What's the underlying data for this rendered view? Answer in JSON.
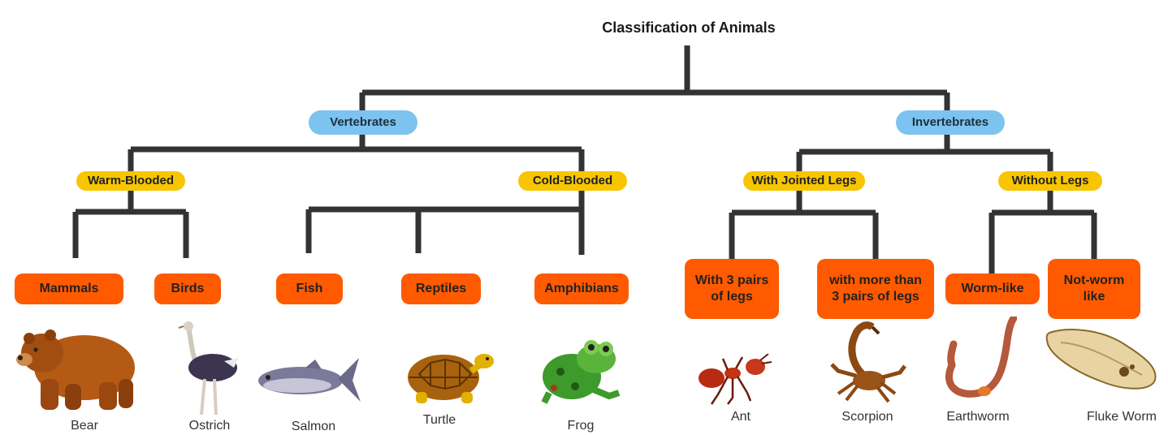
{
  "title": "Classification of Animals",
  "colors": {
    "line": "#333333",
    "level1": "#7cc3f0",
    "level2": "#f7c600",
    "level3": "#ff5a00"
  },
  "level1": {
    "vertebrates": "Vertebrates",
    "invertebrates": "Invertebrates"
  },
  "level2": {
    "warm_blooded": "Warm-Blooded",
    "cold_blooded": "Cold-Blooded",
    "with_jointed_legs": "With Jointed Legs",
    "without_legs": "Without Legs"
  },
  "level3": {
    "mammals": "Mammals",
    "birds": "Birds",
    "fish": "Fish",
    "reptiles": "Reptiles",
    "amphibians": "Amphibians",
    "three_pairs": "With 3 pairs of legs",
    "more_pairs": "with more than 3 pairs of legs",
    "worm_like": "Worm-like",
    "not_worm": "Not-worm like"
  },
  "animals": {
    "bear": "Bear",
    "ostrich": "Ostrich",
    "salmon": "Salmon",
    "turtle": "Turtle",
    "frog": "Frog",
    "ant": "Ant",
    "scorpion": "Scorpion",
    "earthworm": "Earthworm",
    "fluke_worm": "Fluke Worm"
  }
}
